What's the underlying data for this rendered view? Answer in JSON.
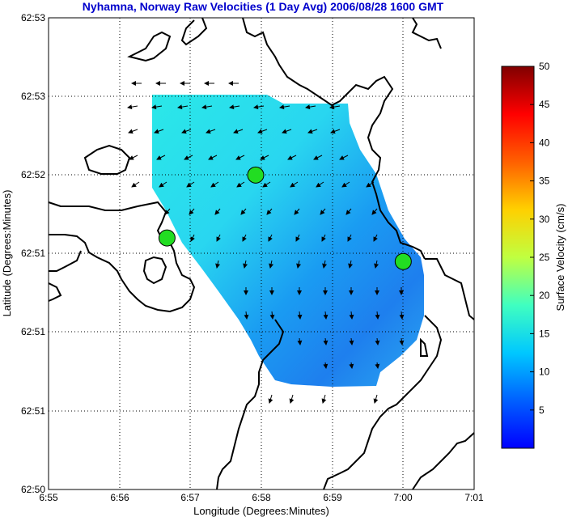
{
  "chart_data": {
    "type": "heatmap",
    "title": "Nyhamna, Norway Raw Velocities (1 Day Avg) 2006/08/28 1600 GMT",
    "xlabel": "Longitude (Degrees:Minutes)",
    "ylabel": "Latitude (Degrees:Minutes)",
    "x_ticks": [
      "6:55",
      "6:56",
      "6:57",
      "6:58",
      "6:59",
      "7:00",
      "7:01"
    ],
    "y_ticks": [
      "62:53",
      "62:53",
      "62:52",
      "62:51",
      "62:51",
      "62:51",
      "62:50"
    ],
    "grid": true,
    "colorbar": {
      "label": "Surface Velocity (cm/s)",
      "range": [
        0,
        50
      ],
      "ticks": [
        5,
        10,
        15,
        20,
        25,
        30,
        35,
        40,
        45,
        50
      ]
    },
    "sites": [
      {
        "lon_min": 56.67,
        "lat_step": 2.8
      },
      {
        "lon_min": 57.92,
        "lat_step": 2.0
      },
      {
        "lon_min": 60.0,
        "lat_step": 3.1
      }
    ]
  }
}
